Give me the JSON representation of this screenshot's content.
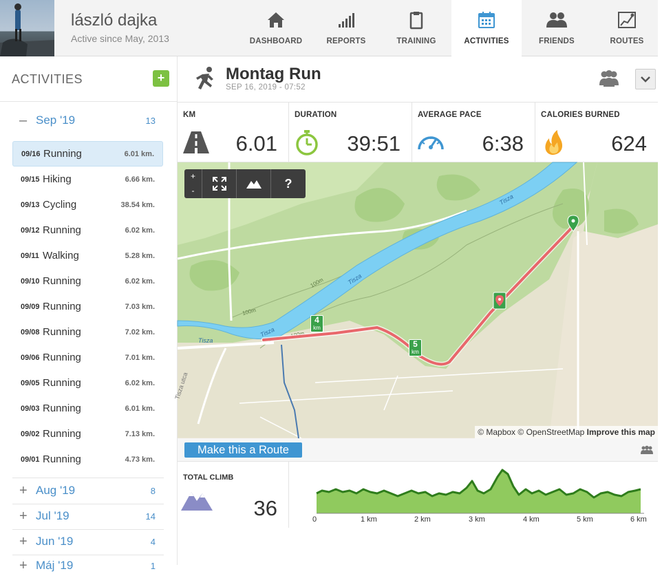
{
  "user": {
    "name": "lászló dajka",
    "since": "Active since May, 2013"
  },
  "nav": [
    {
      "id": "dashboard",
      "label": "DASHBOARD",
      "icon": "home-icon",
      "active": false
    },
    {
      "id": "reports",
      "label": "REPORTS",
      "icon": "bar-chart-icon",
      "active": false
    },
    {
      "id": "training",
      "label": "TRAINING",
      "icon": "clipboard-icon",
      "active": false
    },
    {
      "id": "activities",
      "label": "ACTIVITIES",
      "icon": "calendar-icon",
      "active": true
    },
    {
      "id": "friends",
      "label": "FRIENDS",
      "icon": "friends-icon",
      "active": false
    },
    {
      "id": "routes",
      "label": "ROUTES",
      "icon": "route-map-icon",
      "active": false
    }
  ],
  "sidebar": {
    "title": "ACTIVITIES",
    "add_label": "+",
    "current_month": {
      "sign": "–",
      "label": "Sep '19",
      "count": "13"
    },
    "activities": [
      {
        "date": "09/16",
        "type": "Running",
        "distance": "6.01 km.",
        "selected": true
      },
      {
        "date": "09/15",
        "type": "Hiking",
        "distance": "6.66 km."
      },
      {
        "date": "09/13",
        "type": "Cycling",
        "distance": "38.54 km."
      },
      {
        "date": "09/12",
        "type": "Running",
        "distance": "6.02 km."
      },
      {
        "date": "09/11",
        "type": "Walking",
        "distance": "5.28 km."
      },
      {
        "date": "09/10",
        "type": "Running",
        "distance": "6.02 km."
      },
      {
        "date": "09/09",
        "type": "Running",
        "distance": "7.03 km."
      },
      {
        "date": "09/08",
        "type": "Running",
        "distance": "7.02 km."
      },
      {
        "date": "09/06",
        "type": "Running",
        "distance": "7.01 km."
      },
      {
        "date": "09/05",
        "type": "Running",
        "distance": "6.02 km."
      },
      {
        "date": "09/03",
        "type": "Running",
        "distance": "6.01 km."
      },
      {
        "date": "09/02",
        "type": "Running",
        "distance": "7.13 km."
      },
      {
        "date": "09/01",
        "type": "Running",
        "distance": "4.73 km."
      }
    ],
    "months": [
      {
        "sign": "+",
        "label": "Aug '19",
        "count": "8"
      },
      {
        "sign": "+",
        "label": "Jul '19",
        "count": "14"
      },
      {
        "sign": "+",
        "label": "Jun '19",
        "count": "4"
      },
      {
        "sign": "+",
        "label": "Máj '19",
        "count": "1"
      }
    ]
  },
  "activity": {
    "title": "Montag Run",
    "datetime": "SEP 16, 2019  -  07:52",
    "stats": [
      {
        "label": "KM",
        "value": "6.01",
        "icon": "road-icon"
      },
      {
        "label": "DURATION",
        "value": "39:51",
        "icon": "stopwatch-icon"
      },
      {
        "label": "AVERAGE PACE",
        "value": "6:38",
        "icon": "speedometer-icon"
      },
      {
        "label": "CALORIES BURNED",
        "value": "624",
        "icon": "flame-icon"
      }
    ]
  },
  "map": {
    "zoom_in": "+",
    "zoom_out": "-",
    "help": "?",
    "river_labels": [
      "Tisza",
      "Tisza",
      "Tisza",
      "Tisza"
    ],
    "contour_labels": [
      "100m",
      "100m",
      "100m"
    ],
    "street_label": "Tisza utca",
    "km_markers": [
      {
        "n": "4",
        "u": "km"
      },
      {
        "n": "5",
        "u": "km"
      }
    ],
    "attribution": {
      "mapbox": "© Mapbox",
      "osm": "© OpenStreetMap",
      "improve": "Improve this map"
    }
  },
  "route": {
    "button": "Make this a Route"
  },
  "climb": {
    "label": "TOTAL CLIMB",
    "value": "36",
    "axis_labels": [
      "0",
      "1 km",
      "2 km",
      "3 km",
      "4 km",
      "5 km",
      "6 km"
    ]
  },
  "colors": {
    "accent": "#3f96d2",
    "green": "#7dc142",
    "route": "#e8676b",
    "water": "#7ccff3"
  }
}
